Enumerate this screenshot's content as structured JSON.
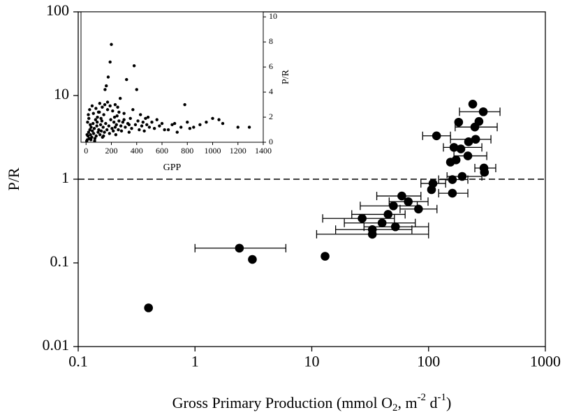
{
  "chart_data": [
    {
      "type": "scatter",
      "xlabel": [
        "Gross Primary Production (mmol O",
        "2",
        ", m",
        "-2",
        " d",
        "-1",
        ")"
      ],
      "ylabel": "P/R",
      "xlog": true,
      "ylog": true,
      "xlim": [
        0.1,
        1000
      ],
      "ylim": [
        0.01,
        100
      ],
      "xticks": [
        0.1,
        1,
        10,
        100,
        1000
      ],
      "yticks": [
        0.01,
        0.1,
        1,
        10,
        100
      ],
      "hline": 1,
      "color": "#000000",
      "x": [
        0.4,
        2.4,
        3.1,
        13,
        239,
        294,
        270,
        181,
        249,
        117,
        220,
        165,
        189,
        253,
        172,
        217,
        154,
        298,
        301,
        194,
        160,
        109,
        106,
        160,
        59,
        67,
        50,
        82,
        45,
        27,
        40,
        33,
        52,
        33
      ],
      "y": [
        0.029,
        0.15,
        0.11,
        0.12,
        7.9,
        6.4,
        4.9,
        4.8,
        4.2,
        3.3,
        2.8,
        2.4,
        2.3,
        3.0,
        1.7,
        1.9,
        1.6,
        1.36,
        1.21,
        1.08,
        0.99,
        0.89,
        0.75,
        0.68,
        0.63,
        0.54,
        0.48,
        0.44,
        0.38,
        0.34,
        0.3,
        0.25,
        0.27,
        0.22
      ],
      "x_low": [
        null,
        1.0,
        null,
        null,
        null,
        184,
        null,
        null,
        169,
        89,
        null,
        134,
        null,
        154,
        null,
        165,
        null,
        249,
        null,
        144,
        122,
        86,
        null,
        122,
        36,
        46,
        26,
        57,
        22,
        12.4,
        19,
        16,
        28,
        11
      ],
      "x_high": [
        null,
        6.0,
        null,
        null,
        null,
        409,
        null,
        null,
        387,
        154,
        null,
        286,
        null,
        342,
        null,
        315,
        null,
        376,
        null,
        286,
        217,
        140,
        null,
        217,
        86,
        99,
        80,
        118,
        63,
        51,
        77,
        72,
        100,
        100
      ]
    },
    {
      "type": "scatter",
      "xlabel": [
        "GPP"
      ],
      "ylabel": "P/R",
      "yaxis_side": "right",
      "xlim": [
        -40,
        1400
      ],
      "ylim": [
        0,
        10.4
      ],
      "xticks": [
        0,
        200,
        400,
        600,
        800,
        1000,
        1200,
        1400
      ],
      "yticks": [
        0,
        2,
        4,
        6,
        8,
        10
      ],
      "color": "#000000",
      "x": [
        10,
        15,
        20,
        25,
        30,
        35,
        40,
        45,
        50,
        55,
        60,
        65,
        70,
        75,
        80,
        85,
        90,
        95,
        100,
        105,
        110,
        115,
        120,
        125,
        130,
        135,
        140,
        145,
        150,
        155,
        160,
        165,
        170,
        175,
        180,
        185,
        190,
        195,
        200,
        205,
        210,
        215,
        220,
        225,
        230,
        235,
        240,
        245,
        250,
        255,
        260,
        270,
        275,
        280,
        290,
        300,
        310,
        320,
        330,
        340,
        350,
        360,
        370,
        380,
        390,
        400,
        410,
        420,
        430,
        440,
        450,
        460,
        470,
        480,
        490,
        500,
        520,
        540,
        560,
        580,
        600,
        620,
        650,
        680,
        700,
        720,
        750,
        780,
        800,
        820,
        850,
        900,
        950,
        1000,
        1050,
        1080,
        1200,
        1290,
        5,
        8,
        12,
        18,
        22,
        28,
        33,
        38,
        48,
        58,
        68,
        78,
        88,
        98,
        108,
        118,
        128,
        138,
        148,
        170,
        190,
        230,
        260,
        300,
        340
      ],
      "y": [
        0.2,
        0.5,
        0.8,
        0.3,
        1.0,
        0.6,
        1.2,
        0.4,
        0.9,
        1.5,
        0.7,
        1.1,
        0.3,
        1.8,
        0.5,
        1.3,
        2.0,
        0.8,
        1.0,
        2.4,
        0.6,
        1.4,
        0.9,
        1.7,
        0.4,
        1.2,
        2.2,
        0.8,
        4.2,
        1.5,
        4.5,
        1.0,
        2.6,
        5.2,
        1.3,
        0.7,
        6.4,
        1.8,
        7.8,
        1.1,
        2.5,
        0.9,
        1.6,
        2.0,
        1.2,
        0.6,
        1.4,
        2.1,
        2.8,
        1.0,
        1.7,
        3.5,
        1.3,
        0.9,
        1.6,
        2.3,
        1.2,
        5.0,
        1.5,
        0.8,
        1.9,
        1.1,
        2.6,
        6.1,
        1.4,
        4.2,
        1.7,
        1.0,
        2.2,
        1.3,
        1.6,
        0.9,
        1.9,
        1.4,
        2.0,
        1.2,
        1.6,
        1.1,
        1.8,
        1.3,
        1.5,
        1.0,
        1.0,
        1.4,
        1.5,
        0.8,
        1.2,
        3.0,
        1.6,
        1.1,
        1.2,
        1.4,
        1.6,
        1.9,
        1.8,
        1.5,
        1.2,
        1.2,
        0.1,
        0.6,
        1.6,
        2.2,
        1.9,
        2.6,
        1.4,
        0.2,
        2.9,
        2.3,
        0.1,
        2.7,
        1.6,
        2.4,
        3.1,
        1.9,
        2.8,
        0.5,
        3.0,
        3.2,
        2.9,
        3.0,
        2.4,
        1.8,
        1.4
      ]
    }
  ]
}
